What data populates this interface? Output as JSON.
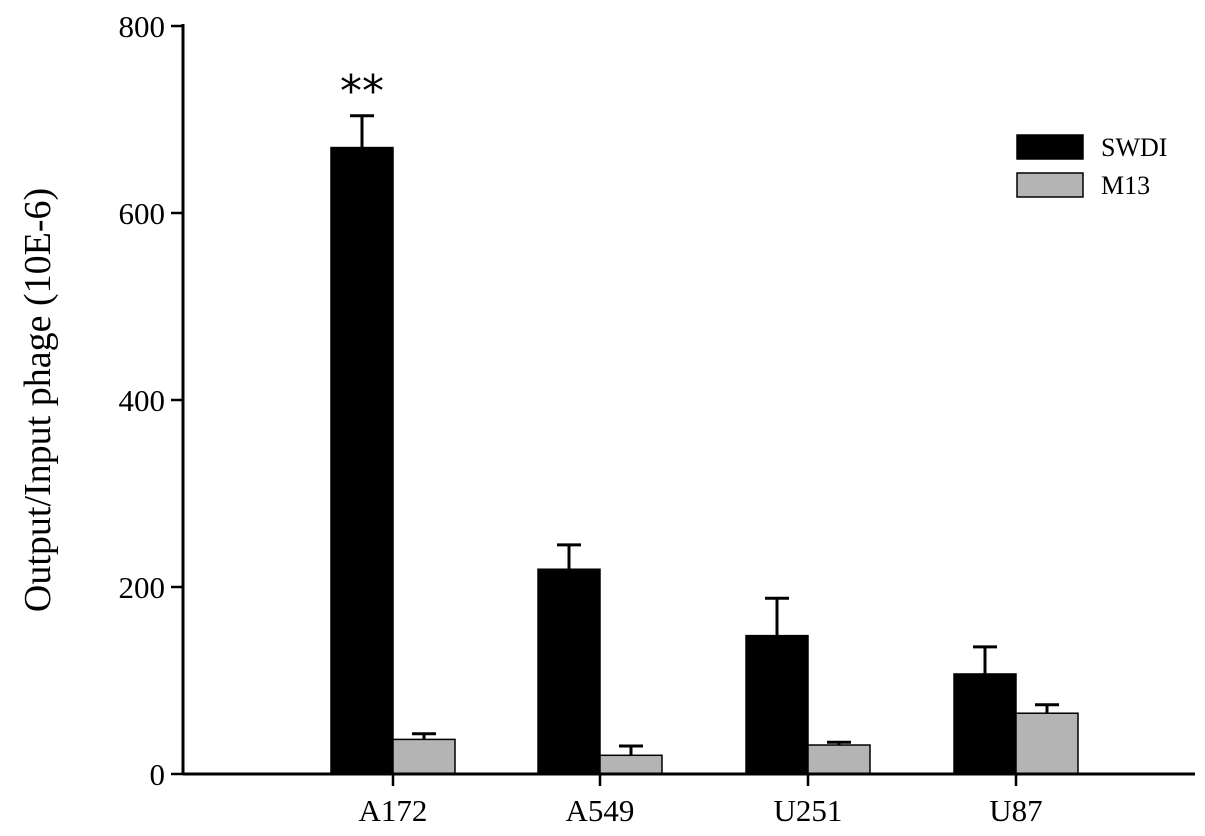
{
  "chart_data": {
    "type": "bar",
    "categories": [
      "A172",
      "A549",
      "U251",
      "U87"
    ],
    "series": [
      {
        "name": "SWDI",
        "values": [
          670,
          219,
          148,
          107
        ],
        "errors": [
          34,
          26,
          40,
          29
        ],
        "color": "#000000"
      },
      {
        "name": "M13",
        "values": [
          37,
          20,
          31,
          65
        ],
        "errors": [
          6,
          10,
          3,
          9
        ],
        "color": "#b4b4b4"
      }
    ],
    "ylabel": "Output/Input phage (10E-6)",
    "xlabel": "",
    "ylim": [
      0,
      800
    ],
    "yticks": [
      0,
      200,
      400,
      600,
      800
    ],
    "legend_position": "top-right",
    "grid": false,
    "annotations": [
      {
        "category": "A172",
        "series": "SWDI",
        "text": "**"
      }
    ]
  }
}
